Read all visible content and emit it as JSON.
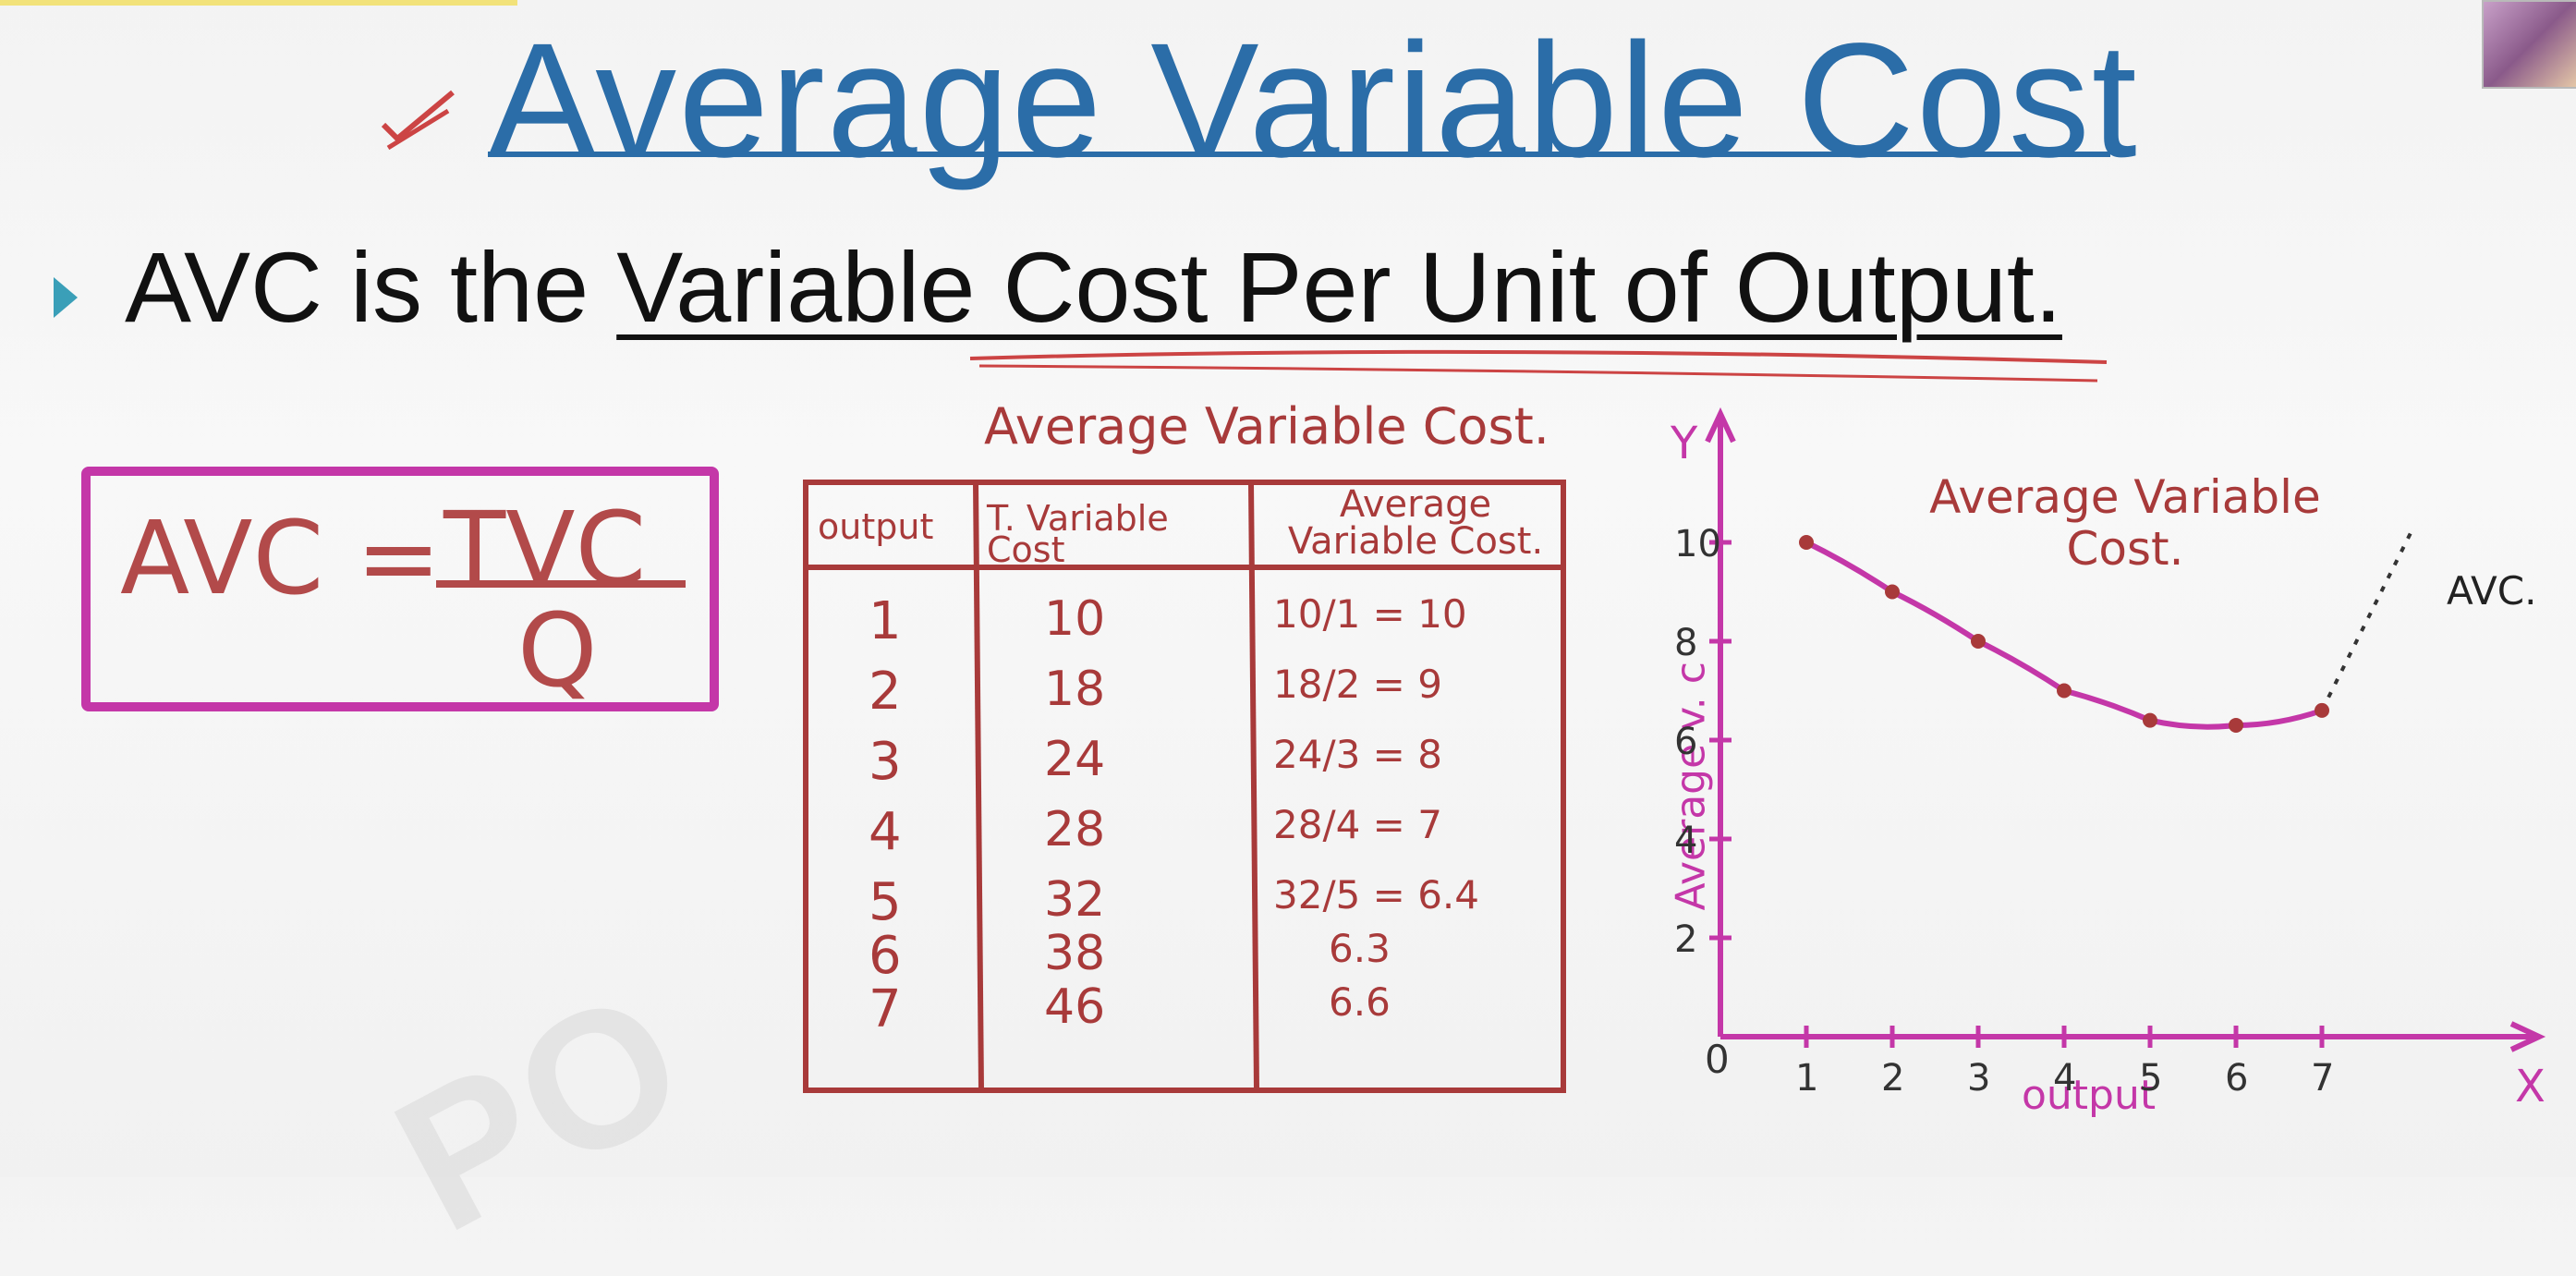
{
  "title": "Average Variable Cost",
  "definition": {
    "prefix": "AVC is the ",
    "emphasis": "Variable Cost Per Unit of Output."
  },
  "formula": {
    "lhs": "AVC =",
    "numerator": "TVC",
    "denominator": "Q"
  },
  "table": {
    "caption": "Average Variable Cost.",
    "headers": [
      "output",
      "T. Variable Cost",
      "Average Variable Cost."
    ],
    "rows": [
      {
        "output": "1",
        "tvc": "10",
        "avc": "10/1 = 10"
      },
      {
        "output": "2",
        "tvc": "18",
        "avc": "18/2 = 9"
      },
      {
        "output": "3",
        "tvc": "24",
        "avc": "24/3 = 8"
      },
      {
        "output": "4",
        "tvc": "28",
        "avc": "28/4 = 7"
      },
      {
        "output": "5",
        "tvc": "32",
        "avc": "32/5 = 6.4"
      },
      {
        "output": "6",
        "tvc": "38",
        "avc": "6.3"
      },
      {
        "output": "7",
        "tvc": "46",
        "avc": "6.6"
      }
    ]
  },
  "graph": {
    "title": "Average Variable Cost.",
    "curve_label": "AVC.",
    "y_axis_letter": "Y",
    "x_axis_letter": "X",
    "y_axis_label": "Average v. c",
    "x_axis_label": "output",
    "origin": "0",
    "y_ticks": [
      "2",
      "4",
      "6",
      "8",
      "10"
    ],
    "x_ticks": [
      "1",
      "2",
      "3",
      "4",
      "5",
      "6",
      "7"
    ]
  },
  "chart_data": {
    "type": "line",
    "title": "Average Variable Cost.",
    "xlabel": "output",
    "ylabel": "Average v. c",
    "x": [
      1,
      2,
      3,
      4,
      5,
      6,
      7
    ],
    "series": [
      {
        "name": "AVC.",
        "values": [
          10,
          9,
          8,
          7,
          6.4,
          6.3,
          6.6
        ]
      }
    ],
    "xlim": [
      0,
      8
    ],
    "ylim": [
      0,
      11
    ],
    "grid": false,
    "color": "#c437a8"
  },
  "colors": {
    "title": "#2b6da8",
    "ink": "#a83a3a",
    "graph": "#c437a8",
    "bullet": "#3a9fb8"
  }
}
